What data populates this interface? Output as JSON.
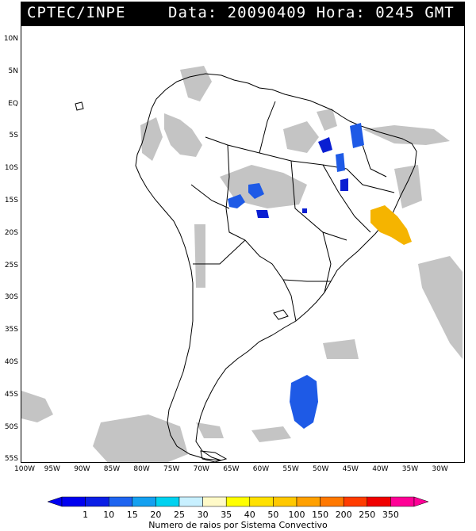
{
  "header": {
    "left": "CPTEC/INPE",
    "right": "Data: 20090409 Hora: 0245 GMT"
  },
  "map": {
    "lat_labels": [
      "10N",
      "5N",
      "EQ",
      "5S",
      "10S",
      "15S",
      "20S",
      "25S",
      "30S",
      "35S",
      "40S",
      "45S",
      "50S",
      "55S"
    ],
    "lon_labels": [
      "100W",
      "95W",
      "90W",
      "85W",
      "80W",
      "75W",
      "70W",
      "65W",
      "60W",
      "55W",
      "50W",
      "45W",
      "40W",
      "35W",
      "30W"
    ],
    "colors": {
      "land_outline": "#000000",
      "cloud_gray": "#bdbdbd",
      "count_1_blue": "#0a1ed2",
      "count_10_blue": "#1e5ae6",
      "count_100_orange": "#f5b400"
    }
  },
  "legend": {
    "caption": "Numero de raios por Sistema Convectivo",
    "values": [
      "1",
      "10",
      "15",
      "20",
      "25",
      "30",
      "35",
      "40",
      "50",
      "100",
      "150",
      "200",
      "250",
      "350"
    ],
    "colors": [
      "#0000f0",
      "#0a1ee6",
      "#1e64f0",
      "#14a0f0",
      "#00d2f0",
      "#c8f0ff",
      "#fffac8",
      "#ffff00",
      "#ffe100",
      "#ffc800",
      "#ffa000",
      "#ff7800",
      "#ff3c00",
      "#f00000",
      "#ff0096"
    ]
  }
}
